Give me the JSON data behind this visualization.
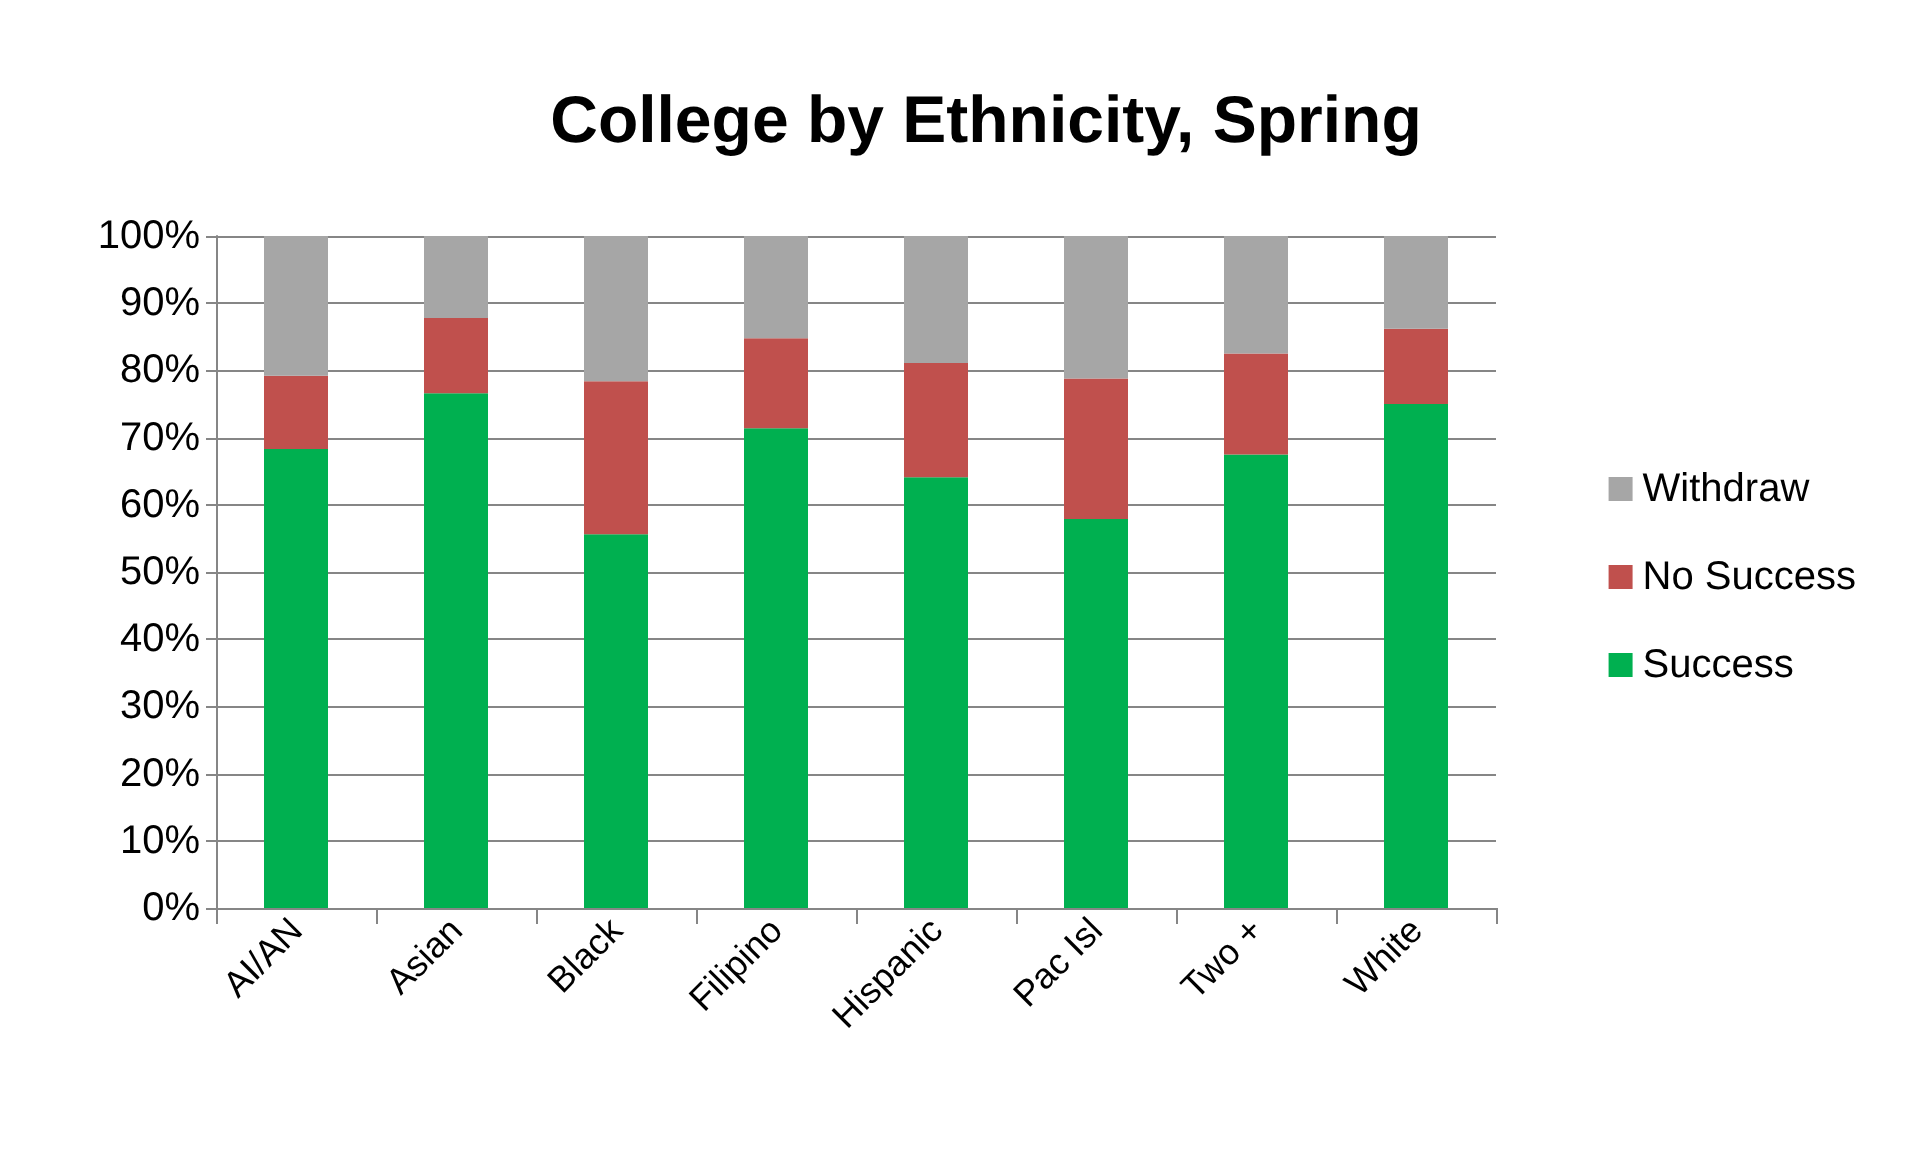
{
  "chart_data": {
    "type": "bar",
    "title": "College by Ethnicity, Spring",
    "stacked": true,
    "categories": [
      "AI/AN",
      "Asian",
      "Black",
      "Filipino",
      "Hispanic",
      "Pac Isl",
      "Two +",
      "White"
    ],
    "series": [
      {
        "name": "Success",
        "color": "#00b050",
        "values": [
          68.3,
          76.6,
          55.6,
          71.4,
          64.1,
          57.9,
          67.5,
          75.0
        ]
      },
      {
        "name": "No Success",
        "color": "#c0504d",
        "values": [
          10.9,
          11.2,
          22.8,
          13.4,
          17.0,
          20.9,
          15.0,
          11.2
        ]
      },
      {
        "name": "Withdraw",
        "color": "#a6a6a6",
        "values": [
          20.8,
          12.2,
          21.6,
          15.2,
          18.9,
          21.2,
          17.5,
          13.8
        ]
      }
    ],
    "ylim": [
      0,
      100
    ],
    "yticks": [
      {
        "value": 0,
        "label": "0%"
      },
      {
        "value": 10,
        "label": "10%"
      },
      {
        "value": 20,
        "label": "20%"
      },
      {
        "value": 30,
        "label": "30%"
      },
      {
        "value": 40,
        "label": "40%"
      },
      {
        "value": 50,
        "label": "50%"
      },
      {
        "value": 60,
        "label": "60%"
      },
      {
        "value": 70,
        "label": "70%"
      },
      {
        "value": 80,
        "label": "80%"
      },
      {
        "value": 90,
        "label": "90%"
      },
      {
        "value": 100,
        "label": "100%"
      }
    ],
    "grid": "y",
    "legend": "right"
  }
}
